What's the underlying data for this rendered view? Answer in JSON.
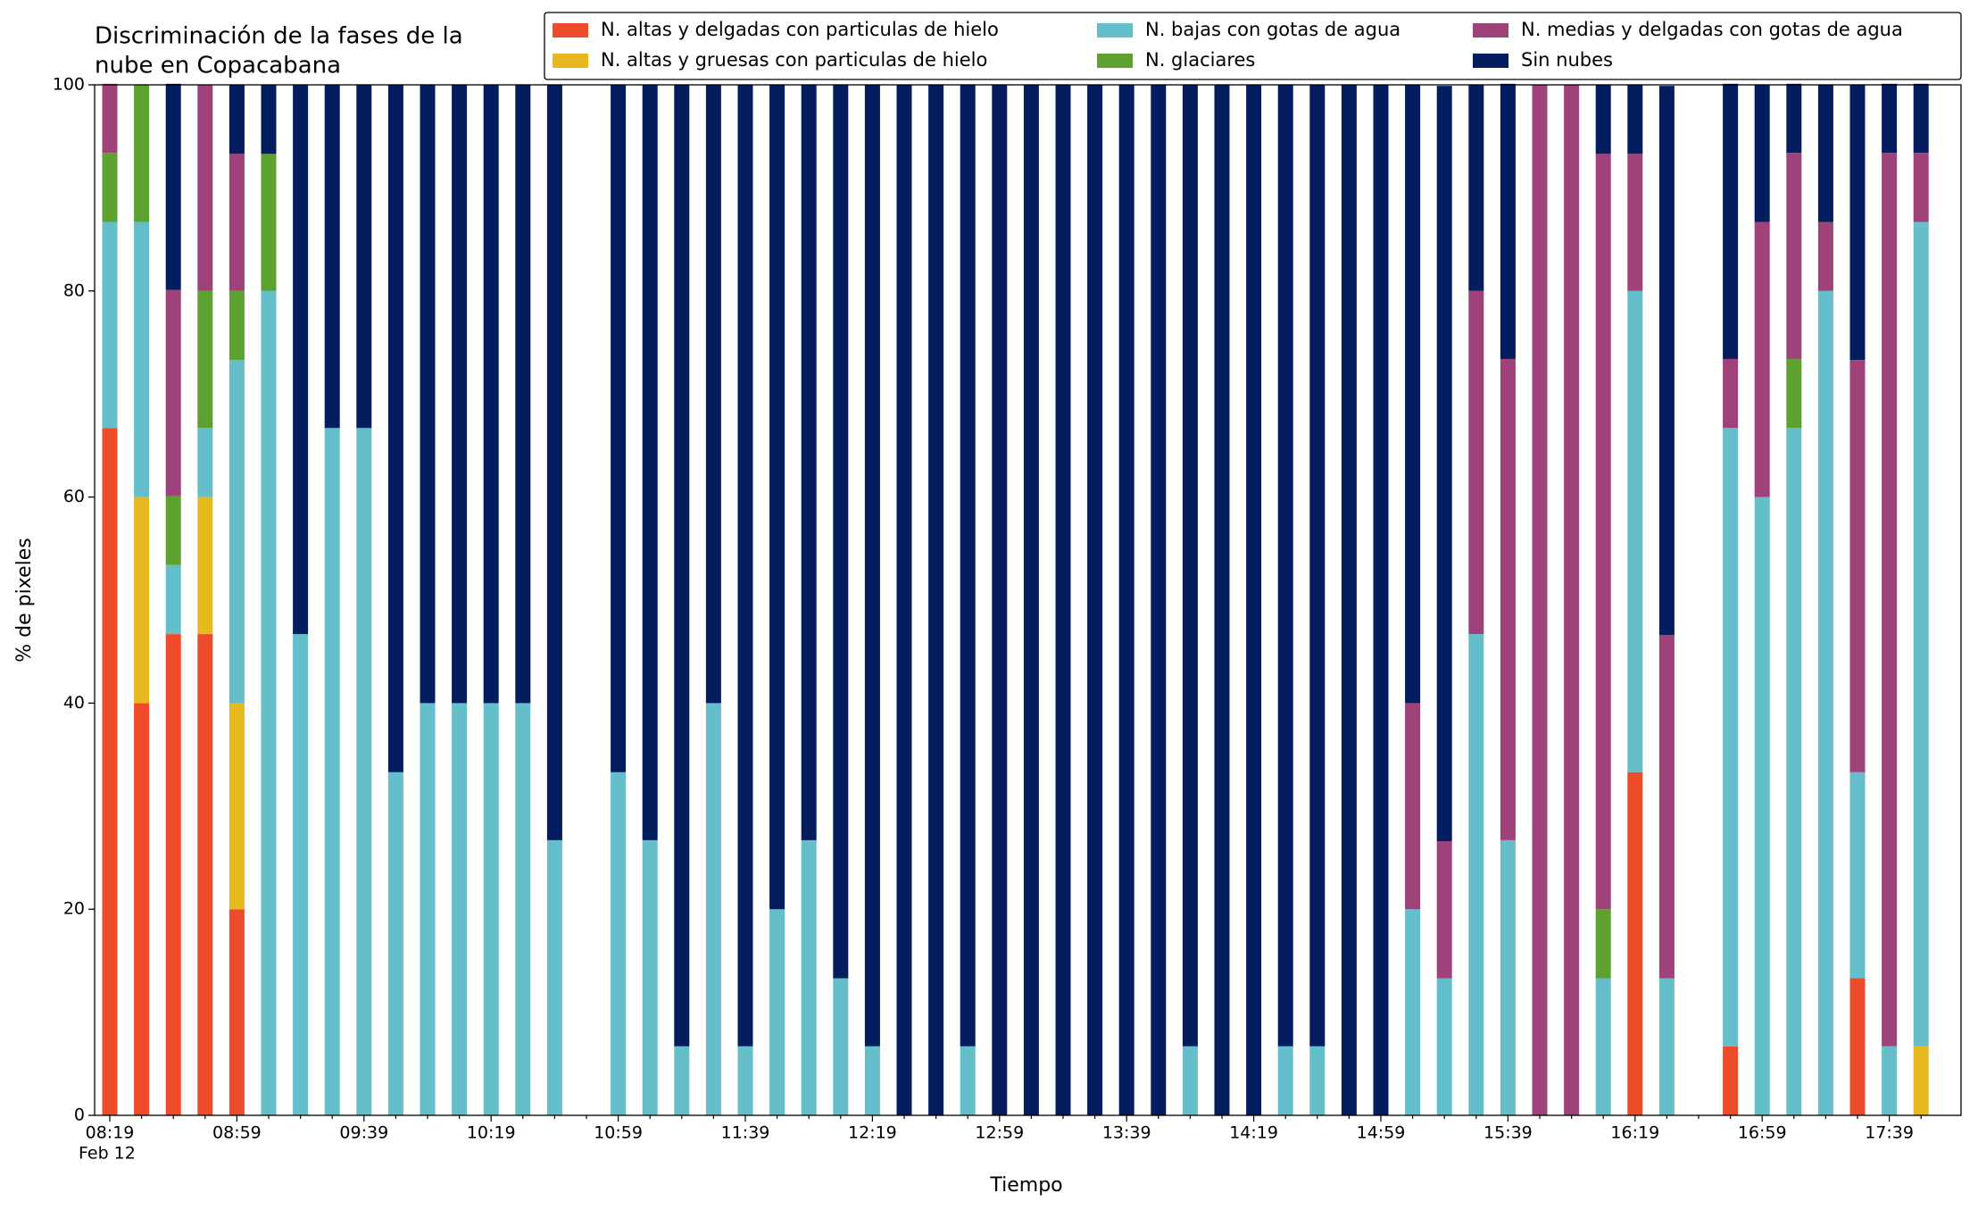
{
  "chart_data": {
    "type": "stacked_bar",
    "title": [
      "Discriminación de la fases de la",
      "nube en Copacabana"
    ],
    "x_label": "Tiempo",
    "y_label": "% de pixeles",
    "x_date_label": "Feb 12",
    "categories": [
      "08:19",
      null,
      null,
      null,
      "08:59",
      null,
      null,
      null,
      "09:39",
      null,
      null,
      null,
      "10:19",
      null,
      null,
      null,
      "10:59",
      null,
      null,
      null,
      "11:39",
      null,
      null,
      null,
      "12:19",
      null,
      null,
      null,
      "12:59",
      null,
      null,
      null,
      "13:39",
      null,
      null,
      null,
      "14:19",
      null,
      null,
      null,
      "14:59",
      null,
      null,
      null,
      "15:39",
      null,
      null,
      null,
      "16:19",
      null,
      null,
      null,
      "16:59",
      null,
      null,
      null,
      "17:39",
      null
    ],
    "ylim": [
      0,
      100
    ],
    "yticks": [
      0,
      20,
      40,
      60,
      80,
      100
    ],
    "series": [
      {
        "name": "N. altas y delgadas con particulas de hielo",
        "color": "#ee4b2b",
        "values": [
          66.7,
          40,
          46.7,
          46.7,
          20,
          0,
          0,
          0,
          0,
          0,
          0,
          0,
          0,
          0,
          0,
          0,
          0,
          0,
          0,
          0,
          0,
          0,
          0,
          0,
          0,
          0,
          0,
          0,
          0,
          0,
          0,
          0,
          0,
          0,
          0,
          0,
          0,
          0,
          0,
          0,
          0,
          0,
          0,
          0,
          0,
          0,
          0,
          0,
          33.3,
          0,
          0,
          6.7,
          0,
          0,
          0,
          13.3,
          0,
          0
        ]
      },
      {
        "name": "N. altas y gruesas con particulas de hielo",
        "color": "#e6b91e",
        "values": [
          0,
          20,
          0,
          13.3,
          20,
          0,
          0,
          0,
          0,
          0,
          0,
          0,
          0,
          0,
          0,
          0,
          0,
          0,
          0,
          0,
          0,
          0,
          0,
          0,
          0,
          0,
          0,
          0,
          0,
          0,
          0,
          0,
          0,
          0,
          0,
          0,
          0,
          0,
          0,
          0,
          0,
          0,
          0,
          0,
          0,
          0,
          0,
          0,
          0,
          0,
          0,
          0,
          0,
          0,
          0,
          0,
          0,
          6.7
        ]
      },
      {
        "name": "N. bajas con gotas de agua",
        "color": "#64bfca",
        "values": [
          20,
          26.7,
          6.7,
          6.7,
          33.3,
          80,
          46.7,
          66.7,
          66.7,
          33.3,
          40,
          40,
          40,
          40,
          26.7,
          0,
          33.3,
          26.7,
          6.7,
          40,
          6.7,
          20,
          26.7,
          13.3,
          6.7,
          0,
          0,
          6.7,
          0,
          0,
          0,
          0,
          0,
          0,
          6.7,
          0,
          0,
          6.7,
          6.7,
          0,
          0,
          20,
          13.3,
          46.7,
          26.7,
          0,
          0,
          13.3,
          46.7,
          13.3,
          0,
          60,
          60,
          66.7,
          80,
          20,
          6.7,
          80
        ]
      },
      {
        "name": "N. glaciares",
        "color": "#5da130",
        "values": [
          6.7,
          13.3,
          6.7,
          13.3,
          6.7,
          13.3,
          0,
          0,
          0,
          0,
          0,
          0,
          0,
          0,
          0,
          0,
          0,
          0,
          0,
          0,
          0,
          0,
          0,
          0,
          0,
          0,
          0,
          0,
          0,
          0,
          0,
          0,
          0,
          0,
          0,
          0,
          0,
          0,
          0,
          0,
          0,
          0,
          0,
          0,
          0,
          0,
          0,
          6.7,
          0,
          0,
          0,
          0,
          0,
          6.7,
          0,
          0,
          0,
          0
        ]
      },
      {
        "name": "N. medias y delgadas con gotas de agua",
        "color": "#a0427a",
        "values": [
          6.7,
          0,
          20,
          20,
          13.3,
          0,
          0,
          0,
          0,
          0,
          0,
          0,
          0,
          0,
          0,
          0,
          0,
          0,
          0,
          0,
          0,
          0,
          0,
          0,
          0,
          0,
          0,
          0,
          0,
          0,
          0,
          0,
          0,
          0,
          0,
          0,
          0,
          0,
          0,
          0,
          0,
          20,
          13.3,
          33.3,
          46.7,
          100,
          100,
          73.3,
          13.3,
          33.3,
          0,
          6.7,
          26.7,
          20,
          6.7,
          40,
          86.7,
          6.7
        ]
      },
      {
        "name": "Sin nubes",
        "color": "#031d5e",
        "values": [
          0,
          0,
          20,
          0,
          6.7,
          6.7,
          53.3,
          33.3,
          33.3,
          66.7,
          60,
          60,
          60,
          60,
          73.3,
          0,
          66.7,
          73.3,
          93.3,
          60,
          93.3,
          80,
          73.3,
          86.7,
          93.3,
          100,
          100,
          93.3,
          100,
          100,
          100,
          100,
          100,
          100,
          93.3,
          100,
          100,
          93.3,
          93.3,
          100,
          100,
          60,
          73.3,
          20,
          26.7,
          0,
          0,
          6.7,
          6.7,
          53.3,
          0,
          26.7,
          13.3,
          6.7,
          13.3,
          26.7,
          6.7,
          6.7
        ]
      }
    ]
  }
}
